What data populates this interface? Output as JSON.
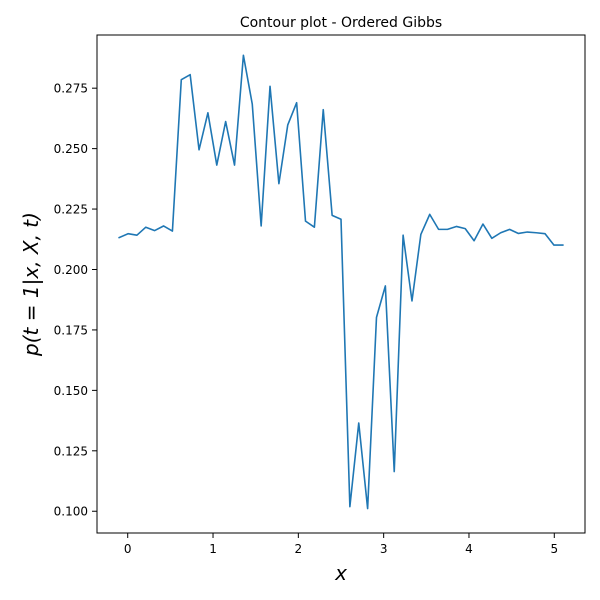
{
  "chart_data": {
    "type": "line",
    "title": "Contour plot - Ordered Gibbs",
    "xlabel": "x",
    "ylabel": "p(t = 1|x, X, t)",
    "xlim": [
      -0.36,
      5.36
    ],
    "ylim": [
      0.091,
      0.297
    ],
    "xticks": [
      0,
      1,
      2,
      3,
      4,
      5
    ],
    "yticks": [
      0.1,
      0.125,
      0.15,
      0.175,
      0.2,
      0.225,
      0.25,
      0.275
    ],
    "xtick_labels": [
      "0",
      "1",
      "2",
      "3",
      "4",
      "5"
    ],
    "ytick_labels": [
      "0.100",
      "0.125",
      "0.150",
      "0.175",
      "0.200",
      "0.225",
      "0.250",
      "0.275"
    ],
    "grid": false,
    "series": [
      {
        "color": "#1f77b4",
        "x": [
          -0.1,
          0.004,
          0.108,
          0.212,
          0.316,
          0.42,
          0.524,
          0.628,
          0.732,
          0.836,
          0.94,
          1.044,
          1.148,
          1.252,
          1.356,
          1.46,
          1.564,
          1.668,
          1.772,
          1.876,
          1.98,
          2.084,
          2.188,
          2.292,
          2.396,
          2.5,
          2.604,
          2.708,
          2.812,
          2.916,
          3.02,
          3.124,
          3.228,
          3.332,
          3.436,
          3.54,
          3.644,
          3.748,
          3.852,
          3.956,
          4.06,
          4.164,
          4.268,
          4.372,
          4.476,
          4.58,
          4.684,
          4.788,
          4.892,
          4.996,
          5.1
        ],
        "y": [
          0.2132,
          0.2148,
          0.2142,
          0.2175,
          0.2161,
          0.218,
          0.2159,
          0.2785,
          0.2806,
          0.2495,
          0.2648,
          0.2432,
          0.2612,
          0.2432,
          0.2886,
          0.2684,
          0.218,
          0.2758,
          0.2355,
          0.2598,
          0.269,
          0.22,
          0.2175,
          0.2661,
          0.2224,
          0.2208,
          0.1019,
          0.1365,
          0.1011,
          0.1802,
          0.1932,
          0.1164,
          0.2142,
          0.187,
          0.2145,
          0.2228,
          0.2166,
          0.2166,
          0.2178,
          0.2169,
          0.2119,
          0.2188,
          0.2129,
          0.2152,
          0.2166,
          0.2149,
          0.2155,
          0.2152,
          0.2148,
          0.2101,
          0.2101
        ]
      }
    ]
  }
}
